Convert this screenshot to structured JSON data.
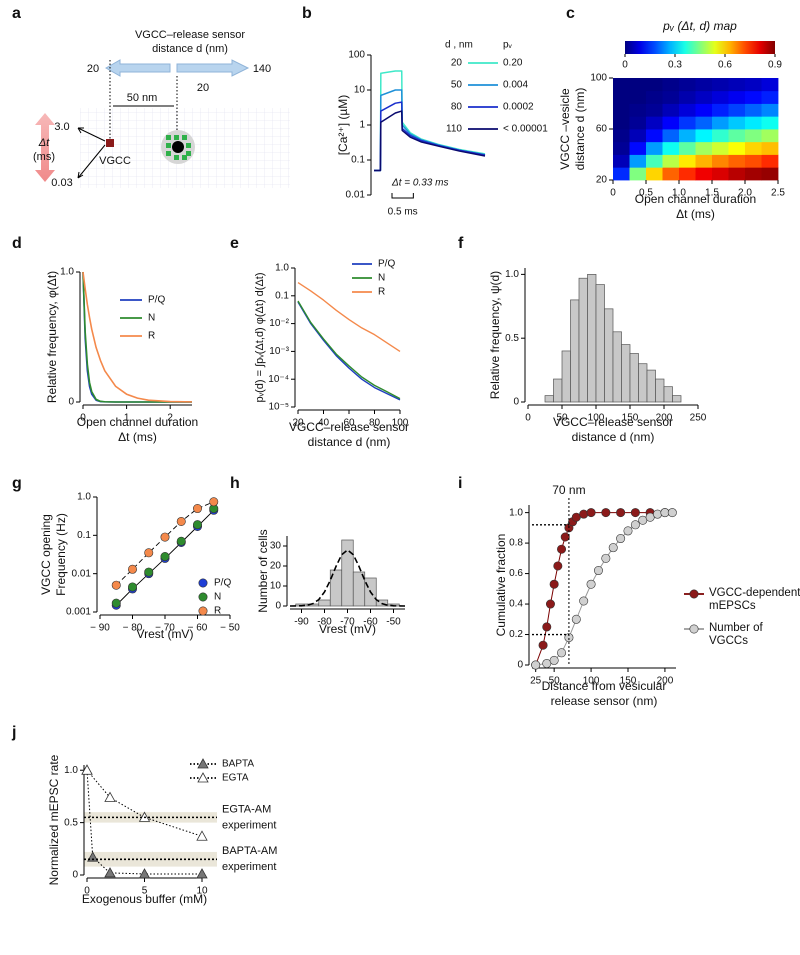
{
  "diagram": {
    "panel": "a",
    "title": [
      "VGCC–release sensor",
      "distance d (nm)"
    ],
    "arrow_left": "20",
    "arrow_right": "140",
    "right_value": "20",
    "distance": "50 nm",
    "dt_top": "3.0",
    "dt_label": [
      "Δt",
      "(ms)"
    ],
    "dt_bottom": "0.03",
    "channel": "VGCC"
  },
  "chart_data": [
    {
      "panel": "b",
      "type": "line",
      "ylabel": "[Ca²⁺] (µM)",
      "ylog": true,
      "ylim": [
        0.01,
        100
      ],
      "yticks": [
        0.01,
        0.1,
        1,
        10,
        100
      ],
      "xlim": [
        0,
        2.6
      ],
      "x": [
        0,
        0.15,
        0.16,
        0.5,
        0.65,
        0.66,
        0.85,
        1.1,
        1.5,
        2,
        2.6
      ],
      "legend_header": [
        "d , nm",
        "pᵥ"
      ],
      "series": [
        {
          "name": "20",
          "pv": "0.20",
          "color": "#3ee8c8",
          "values": [
            0.05,
            0.05,
            30,
            35,
            35,
            1.2,
            0.6,
            0.4,
            0.28,
            0.2,
            0.15
          ]
        },
        {
          "name": "50",
          "pv": "0.004",
          "color": "#1e90d8",
          "values": [
            0.05,
            0.05,
            7,
            10,
            10,
            1.0,
            0.55,
            0.38,
            0.27,
            0.19,
            0.14
          ]
        },
        {
          "name": "80",
          "pv": "0.0002",
          "color": "#1a2ecc",
          "values": [
            0.05,
            0.05,
            2.5,
            4.2,
            4.5,
            0.8,
            0.5,
            0.36,
            0.26,
            0.19,
            0.14
          ]
        },
        {
          "name": "110",
          "pv": "< 0.00001",
          "color": "#0a0a6e",
          "values": [
            0.05,
            0.05,
            1.2,
            2.2,
            2.5,
            0.7,
            0.45,
            0.33,
            0.25,
            0.18,
            0.13
          ]
        }
      ],
      "annotation": "Δt = 0.33 ms",
      "scalebar": {
        "value": 0.5,
        "label": "0.5 ms"
      }
    },
    {
      "panel": "c",
      "type": "heatmap",
      "title": "pᵥ (Δt, d) map",
      "xlabel": [
        "Open channel duration",
        "Δt (ms)"
      ],
      "ylabel": [
        "VGCC –vesicle",
        "distance d (nm)"
      ],
      "xlim": [
        0,
        2.5
      ],
      "ylim": [
        20,
        100
      ],
      "xticks": [
        0,
        0.5,
        {
          "value": 1,
          "label": "1.0"
        },
        1.5,
        {
          "value": 2,
          "label": "2.0"
        },
        2.5
      ],
      "yticks": [
        20,
        60,
        100
      ],
      "x": [
        0.125,
        0.375,
        0.625,
        0.875,
        1.125,
        1.375,
        1.625,
        1.875,
        2.125,
        2.375
      ],
      "y": [
        25,
        35,
        45,
        55,
        65,
        75,
        85,
        95
      ],
      "z": [
        [
          0.15,
          0.45,
          0.6,
          0.7,
          0.75,
          0.8,
          0.82,
          0.85,
          0.87,
          0.88
        ],
        [
          0.05,
          0.25,
          0.4,
          0.5,
          0.58,
          0.63,
          0.67,
          0.7,
          0.72,
          0.75
        ],
        [
          0.02,
          0.12,
          0.25,
          0.35,
          0.42,
          0.48,
          0.52,
          0.56,
          0.6,
          0.62
        ],
        [
          0.01,
          0.05,
          0.12,
          0.2,
          0.27,
          0.33,
          0.38,
          0.42,
          0.45,
          0.48
        ],
        [
          0,
          0.02,
          0.06,
          0.11,
          0.16,
          0.2,
          0.25,
          0.29,
          0.32,
          0.35
        ],
        [
          0,
          0.01,
          0.02,
          0.05,
          0.08,
          0.11,
          0.14,
          0.17,
          0.2,
          0.23
        ],
        [
          0,
          0,
          0.01,
          0.02,
          0.04,
          0.06,
          0.08,
          0.1,
          0.12,
          0.14
        ],
        [
          0,
          0,
          0,
          0.01,
          0.02,
          0.03,
          0.04,
          0.05,
          0.06,
          0.08
        ]
      ],
      "zlim": [
        0,
        0.9
      ],
      "colorbar_ticks": [
        0,
        0.3,
        0.6,
        0.9
      ]
    },
    {
      "panel": "d",
      "type": "line",
      "xlabel": [
        "Open channel duration",
        "Δt (ms)"
      ],
      "ylabel": "Relative frequency, φ(Δt)",
      "xlim": [
        0,
        2.5
      ],
      "ylim": [
        0,
        1
      ],
      "xticks": [
        0,
        1,
        2
      ],
      "yticks": [
        0,
        {
          "value": 1,
          "label": "1.0"
        }
      ],
      "x": [
        0,
        0.05,
        0.1,
        0.15,
        0.2,
        0.3,
        0.4,
        0.5,
        0.75,
        1,
        1.25,
        1.5,
        2,
        2.5
      ],
      "series": [
        {
          "name": "P/Q",
          "color": "#1f3fbf",
          "values": [
            1,
            0.49,
            0.24,
            0.12,
            0.06,
            0.014,
            0.003,
            0.001,
            0,
            0,
            0,
            0,
            0,
            0
          ]
        },
        {
          "name": "N",
          "color": "#2e8b2e",
          "values": [
            1,
            0.54,
            0.29,
            0.15,
            0.08,
            0.02,
            0.005,
            0.002,
            0,
            0,
            0,
            0,
            0,
            0
          ]
        },
        {
          "name": "R",
          "color": "#f4894b",
          "values": [
            1,
            0.87,
            0.75,
            0.65,
            0.56,
            0.42,
            0.32,
            0.24,
            0.12,
            0.06,
            0.03,
            0.014,
            0.003,
            0.001
          ]
        }
      ]
    },
    {
      "panel": "e",
      "type": "line",
      "xlabel": [
        "VGCC–release sensor",
        "distance d (nm)"
      ],
      "ylabel": "pᵥ(d) = ∫pᵥ(Δt,d) φ(Δt) d(Δt)",
      "ylog": true,
      "ylim": [
        1e-05,
        1
      ],
      "yticks": [
        {
          "value": 1e-05,
          "label": "10⁻⁵"
        },
        {
          "value": 0.0001,
          "label": "10⁻⁴"
        },
        {
          "value": 0.001,
          "label": "10⁻³"
        },
        {
          "value": 0.01,
          "label": "10⁻²"
        },
        0.1,
        {
          "value": 1,
          "label": "1.0"
        }
      ],
      "xlim": [
        20,
        100
      ],
      "xticks": [
        20,
        40,
        60,
        80,
        100
      ],
      "x": [
        20,
        30,
        40,
        50,
        60,
        70,
        80,
        90,
        100
      ],
      "series": [
        {
          "name": "P/Q",
          "color": "#1f3fbf",
          "values": [
            0.06,
            0.01,
            0.0025,
            0.0007,
            0.00025,
            0.0001,
            5e-05,
            3e-05,
            1.8e-05
          ]
        },
        {
          "name": "N",
          "color": "#2e8b2e",
          "values": [
            0.065,
            0.011,
            0.0028,
            0.0008,
            0.0003,
            0.00012,
            6e-05,
            3.5e-05,
            2e-05
          ]
        },
        {
          "name": "R",
          "color": "#f4894b",
          "values": [
            0.3,
            0.15,
            0.07,
            0.03,
            0.014,
            0.007,
            0.004,
            0.002,
            0.001
          ]
        }
      ]
    },
    {
      "panel": "f",
      "type": "histogram",
      "xlabel": [
        "VGCC–release sensor",
        "distance d (nm)"
      ],
      "ylabel": "Relative frequency, ψ(d)",
      "xlim": [
        0,
        250
      ],
      "ylim": [
        0,
        1.05
      ],
      "xticks": [
        0,
        50,
        100,
        150,
        200,
        250
      ],
      "yticks": [
        0,
        0.5,
        {
          "value": 1,
          "label": "1.0"
        }
      ],
      "bins": [
        25,
        37.5,
        50,
        62.5,
        75,
        87.5,
        100,
        112.5,
        125,
        137.5,
        150,
        162.5,
        175,
        187.5,
        200,
        212.5,
        225
      ],
      "values": [
        0.05,
        0.18,
        0.4,
        0.8,
        0.97,
        1.0,
        0.92,
        0.73,
        0.55,
        0.45,
        0.38,
        0.3,
        0.25,
        0.18,
        0.12,
        0.05
      ],
      "color": "#c8c8c8"
    },
    {
      "panel": "g",
      "type": "scatter",
      "xlabel": "Vrest (mV)",
      "ylabel": [
        "VGCC opening",
        "Frequency (Hz)"
      ],
      "ylog": true,
      "ylim": [
        0.001,
        1
      ],
      "yticks": [
        0.001,
        0.01,
        0.1,
        {
          "value": 1,
          "label": "1.0"
        }
      ],
      "xlim": [
        -90,
        -50
      ],
      "xticks": [
        {
          "value": -90,
          "label": "− 90"
        },
        {
          "value": -80,
          "label": "− 80"
        },
        {
          "value": -70,
          "label": "− 70"
        },
        {
          "value": -60,
          "label": "− 60"
        },
        {
          "value": -50,
          "label": "− 50"
        }
      ],
      "x": [
        -85,
        -80,
        -75,
        -70,
        -65,
        -60,
        -55
      ],
      "series": [
        {
          "name": "P/Q",
          "color": "#1f3fd6",
          "marker": "circle",
          "line_style": "solid",
          "line_color": "#000",
          "values": [
            0.0015,
            0.004,
            0.01,
            0.025,
            0.065,
            0.17,
            0.45
          ]
        },
        {
          "name": "N",
          "color": "#2e8b2e",
          "marker": "circle",
          "line_style": "none",
          "values": [
            0.0017,
            0.0045,
            0.011,
            0.028,
            0.07,
            0.19,
            0.5
          ]
        },
        {
          "name": "R",
          "color": "#f4894b",
          "marker": "circle",
          "line_style": "dashed",
          "line_color": "#000",
          "values": [
            0.005,
            0.013,
            0.035,
            0.09,
            0.23,
            0.5,
            0.75
          ]
        }
      ]
    },
    {
      "panel": "h",
      "type": "histogram",
      "xlabel": "Vrest (mV)",
      "ylabel": "Number of cells",
      "xlim": [
        -95,
        -45
      ],
      "ylim": [
        0,
        35
      ],
      "xticks": [
        -90,
        -80,
        -70,
        -60,
        -50
      ],
      "yticks": [
        0,
        10,
        20,
        30
      ],
      "bins": [
        -92.5,
        -87.5,
        -82.5,
        -77.5,
        -72.5,
        -67.5,
        -62.5,
        -57.5,
        -52.5,
        -47.5
      ],
      "values": [
        1,
        1,
        3,
        18,
        33,
        17,
        14,
        3,
        1
      ],
      "color": "#c8c8c8",
      "fit": {
        "x": [
          -95,
          -92.5,
          -90,
          -87.5,
          -85,
          -82.5,
          -80,
          -77.5,
          -75,
          -72.5,
          -70,
          -67.5,
          -65,
          -62.5,
          -60,
          -57.5,
          -55,
          -52.5,
          -50,
          -47.5,
          -45
        ],
        "values": [
          0,
          0.03,
          0.1,
          0.4,
          1.2,
          3.2,
          7,
          12.8,
          19.8,
          25.7,
          28,
          25.7,
          19.8,
          12.8,
          7,
          3.2,
          1.2,
          0.4,
          0.1,
          0.03,
          0
        ]
      }
    },
    {
      "panel": "i",
      "type": "line",
      "xlabel": [
        "Distance from vesicular",
        "release sensor (nm)"
      ],
      "ylabel": "Cumulative fraction",
      "xlim": [
        20,
        215
      ],
      "ylim": [
        0,
        1.05
      ],
      "xticks": [
        25,
        50,
        100,
        150,
        200
      ],
      "yticks": [
        0,
        0.2,
        0.4,
        0.6,
        0.8,
        {
          "value": 1,
          "label": "1.0"
        }
      ],
      "annotation": {
        "value": 70,
        "label": "70 nm"
      },
      "guides_y": [
        0.92,
        0.2
      ],
      "series": [
        {
          "name": "VGCC-dependent mEPSCs",
          "color": "#7a0000",
          "marker": "circle",
          "marker_fill": "#8b1a1a",
          "x": [
            25,
            35,
            40,
            45,
            50,
            55,
            60,
            65,
            70,
            75,
            80,
            90,
            100,
            120,
            140,
            160,
            180,
            200
          ],
          "values": [
            0,
            0.13,
            0.25,
            0.4,
            0.53,
            0.65,
            0.76,
            0.84,
            0.9,
            0.94,
            0.97,
            0.99,
            1,
            1,
            1,
            1,
            1,
            1
          ]
        },
        {
          "name": "Number of VGCCs",
          "color": "#999999",
          "marker": "circle",
          "marker_fill": "#d0d0d0",
          "x": [
            25,
            40,
            50,
            60,
            70,
            80,
            90,
            100,
            110,
            120,
            130,
            140,
            150,
            160,
            170,
            180,
            190,
            200,
            210
          ],
          "values": [
            0,
            0.01,
            0.03,
            0.08,
            0.18,
            0.3,
            0.42,
            0.53,
            0.62,
            0.7,
            0.77,
            0.83,
            0.88,
            0.92,
            0.95,
            0.97,
            0.99,
            1.0,
            1.0
          ]
        }
      ]
    },
    {
      "panel": "j",
      "type": "line",
      "xlabel": "Exogenous buffer (mM)",
      "ylabel": "Normalized mEPSC rate",
      "xlim": [
        0,
        10
      ],
      "ylim": [
        0,
        1.05
      ],
      "xticks": [
        0,
        5,
        10
      ],
      "yticks": [
        0,
        0.5,
        {
          "value": 1,
          "label": "1.0"
        }
      ],
      "series": [
        {
          "name": "BAPTA",
          "color": "#000",
          "line_style": "dotted",
          "marker": "triangle",
          "marker_fill": "#777",
          "x": [
            0,
            0.5,
            2,
            5,
            10
          ],
          "values": [
            1,
            0.17,
            0.02,
            0.01,
            0.01
          ]
        },
        {
          "name": "EGTA",
          "color": "#000",
          "line_style": "dotted",
          "marker": "triangle",
          "marker_fill": "#fff",
          "x": [
            0,
            2,
            5,
            10
          ],
          "values": [
            1,
            0.74,
            0.55,
            0.37
          ]
        }
      ],
      "bands": [
        {
          "value": 0.55,
          "error": 0.05,
          "label": [
            "EGTA-AM",
            "experiment"
          ]
        },
        {
          "value": 0.15,
          "error": 0.07,
          "label": [
            "BAPTA-AM",
            "experiment"
          ]
        }
      ]
    }
  ]
}
